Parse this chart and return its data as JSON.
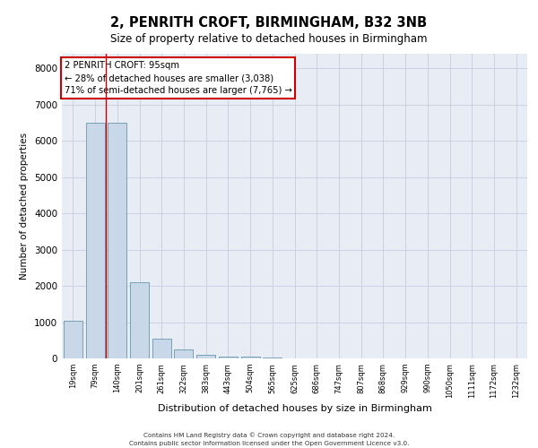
{
  "title_line1": "2, PENRITH CROFT, BIRMINGHAM, B32 3NB",
  "title_line2": "Size of property relative to detached houses in Birmingham",
  "xlabel": "Distribution of detached houses by size in Birmingham",
  "ylabel": "Number of detached properties",
  "categories": [
    "19sqm",
    "79sqm",
    "140sqm",
    "201sqm",
    "261sqm",
    "322sqm",
    "383sqm",
    "443sqm",
    "504sqm",
    "565sqm",
    "625sqm",
    "686sqm",
    "747sqm",
    "807sqm",
    "868sqm",
    "929sqm",
    "990sqm",
    "1050sqm",
    "1111sqm",
    "1172sqm",
    "1232sqm"
  ],
  "values": [
    1050,
    6500,
    6500,
    2100,
    550,
    250,
    110,
    60,
    45,
    30,
    8,
    0,
    0,
    0,
    0,
    0,
    0,
    0,
    0,
    0,
    0
  ],
  "bar_color": "#c8d8e8",
  "bar_edge_color": "#6699aa",
  "grid_color": "#c8cce0",
  "plot_bg_color": "#e8edf5",
  "annotation_box_color": "#ffffff",
  "annotation_box_edge": "#cc0000",
  "red_line_x": 1.5,
  "red_line_color": "#cc0000",
  "annotation_title": "2 PENRITH CROFT: 95sqm",
  "annotation_line1": "← 28% of detached houses are smaller (3,038)",
  "annotation_line2": "71% of semi-detached houses are larger (7,765) →",
  "ylim": [
    0,
    8400
  ],
  "yticks": [
    0,
    1000,
    2000,
    3000,
    4000,
    5000,
    6000,
    7000,
    8000
  ],
  "footer_line1": "Contains HM Land Registry data © Crown copyright and database right 2024.",
  "footer_line2": "Contains public sector information licensed under the Open Government Licence v3.0."
}
